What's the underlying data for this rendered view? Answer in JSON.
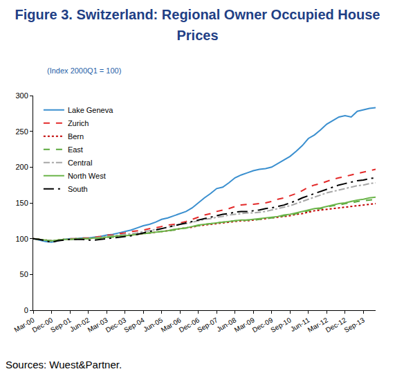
{
  "chart_data": {
    "type": "line",
    "title": "Figure 3. Switzerland: Regional Owner Occupied House Prices",
    "subtitle": "(Index 2000Q1 = 100)",
    "source": "Sources: Wuest&Partner.",
    "categories": [
      "Mar-00",
      null,
      null,
      "Dec-00",
      null,
      null,
      "Sep-01",
      null,
      null,
      "Jun-02",
      null,
      null,
      "Mar-03",
      null,
      null,
      "Dec-03",
      null,
      null,
      "Sep-04",
      null,
      null,
      "Jun-05",
      null,
      null,
      "Mar-06",
      null,
      null,
      "Dec-06",
      null,
      null,
      "Sep-07",
      null,
      null,
      "Jun-08",
      null,
      null,
      "Mar-09",
      null,
      null,
      "Dec-09",
      null,
      null,
      "Sep-10",
      null,
      null,
      "Jun-11",
      null,
      null,
      "Mar-12",
      null,
      null,
      "Dec-12",
      null,
      null,
      "Sep-13",
      null,
      null
    ],
    "series": [
      {
        "name": "Lake Geneva",
        "color": "#3a8fcf",
        "line_style": "solid",
        "values": [
          100,
          98,
          96,
          95,
          97,
          99,
          100,
          100,
          101,
          101,
          102,
          103,
          105,
          106,
          108,
          110,
          112,
          115,
          118,
          120,
          123,
          127,
          129,
          132,
          135,
          138,
          143,
          150,
          157,
          163,
          170,
          172,
          178,
          185,
          189,
          192,
          195,
          197,
          198,
          200,
          205,
          210,
          215,
          222,
          230,
          240,
          245,
          252,
          260,
          265,
          270,
          272,
          270,
          278,
          280,
          282,
          283
        ]
      },
      {
        "name": "Zurich",
        "color": "#e32a2a",
        "line_style": "dash",
        "values": [
          100,
          99,
          98,
          97,
          98,
          99,
          100,
          100,
          101,
          101,
          102,
          103,
          105,
          105,
          107,
          108,
          110,
          111,
          112,
          114,
          115,
          117,
          119,
          120,
          122,
          124,
          127,
          130,
          133,
          135,
          138,
          140,
          142,
          145,
          147,
          148,
          148,
          149,
          150,
          152,
          155,
          157,
          160,
          163,
          167,
          172,
          175,
          177,
          180,
          183,
          185,
          187,
          189,
          191,
          193,
          195,
          197
        ]
      },
      {
        "name": "Bern",
        "color": "#c00000",
        "line_style": "dot",
        "values": [
          100,
          99,
          98,
          97,
          98,
          99,
          99,
          100,
          100,
          100,
          101,
          101,
          102,
          103,
          104,
          104,
          105,
          106,
          107,
          108,
          109,
          110,
          111,
          112,
          114,
          115,
          116,
          118,
          119,
          120,
          121,
          122,
          123,
          124,
          125,
          125,
          126,
          127,
          128,
          129,
          130,
          131,
          132,
          134,
          135,
          137,
          139,
          140,
          141,
          142,
          143,
          144,
          145,
          146,
          147,
          148,
          149
        ]
      },
      {
        "name": "East",
        "color": "#5aa83c",
        "line_style": "dash",
        "values": [
          100,
          99,
          98,
          97,
          98,
          99,
          99,
          99,
          100,
          100,
          100,
          101,
          102,
          102,
          103,
          104,
          105,
          106,
          107,
          108,
          109,
          110,
          111,
          112,
          114,
          115,
          117,
          118,
          120,
          121,
          122,
          123,
          124,
          125,
          125,
          126,
          126,
          127,
          128,
          129,
          130,
          132,
          133,
          135,
          137,
          139,
          141,
          142,
          144,
          146,
          147,
          149,
          150,
          152,
          153,
          154,
          155
        ]
      },
      {
        "name": "Central",
        "color": "#a6a6a6",
        "line_style": "dashdot",
        "values": [
          100,
          99,
          98,
          97,
          98,
          99,
          99,
          99,
          100,
          100,
          101,
          102,
          103,
          104,
          105,
          106,
          107,
          108,
          110,
          111,
          113,
          114,
          116,
          118,
          120,
          121,
          123,
          125,
          127,
          128,
          130,
          131,
          133,
          134,
          135,
          136,
          136,
          137,
          138,
          140,
          142,
          144,
          146,
          149,
          152,
          155,
          158,
          161,
          164,
          166,
          168,
          170,
          172,
          174,
          175,
          177,
          178
        ]
      },
      {
        "name": "North West",
        "color": "#6bb54a",
        "line_style": "solid",
        "values": [
          100,
          99,
          98,
          97,
          98,
          99,
          99,
          100,
          100,
          100,
          101,
          101,
          102,
          103,
          104,
          104,
          105,
          106,
          107,
          108,
          109,
          110,
          111,
          113,
          114,
          115,
          117,
          119,
          120,
          121,
          122,
          123,
          124,
          125,
          126,
          126,
          127,
          128,
          129,
          130,
          131,
          133,
          134,
          136,
          138,
          140,
          142,
          143,
          145,
          147,
          149,
          150,
          152,
          154,
          155,
          157,
          158
        ]
      },
      {
        "name": "South",
        "color": "#000000",
        "line_style": "longdashdot",
        "values": [
          100,
          99,
          97,
          95,
          97,
          98,
          99,
          99,
          99,
          98,
          98,
          99,
          100,
          101,
          102,
          103,
          104,
          106,
          108,
          110,
          112,
          114,
          116,
          118,
          120,
          122,
          124,
          126,
          128,
          130,
          132,
          134,
          135,
          137,
          138,
          138,
          139,
          140,
          142,
          143,
          145,
          147,
          150,
          153,
          157,
          160,
          163,
          166,
          169,
          172,
          175,
          177,
          179,
          181,
          182,
          184,
          185
        ]
      }
    ],
    "ylim": [
      0,
      300
    ],
    "yticks": [
      0,
      50,
      100,
      150,
      200,
      250,
      300
    ],
    "grid": false,
    "legend": "top left"
  }
}
